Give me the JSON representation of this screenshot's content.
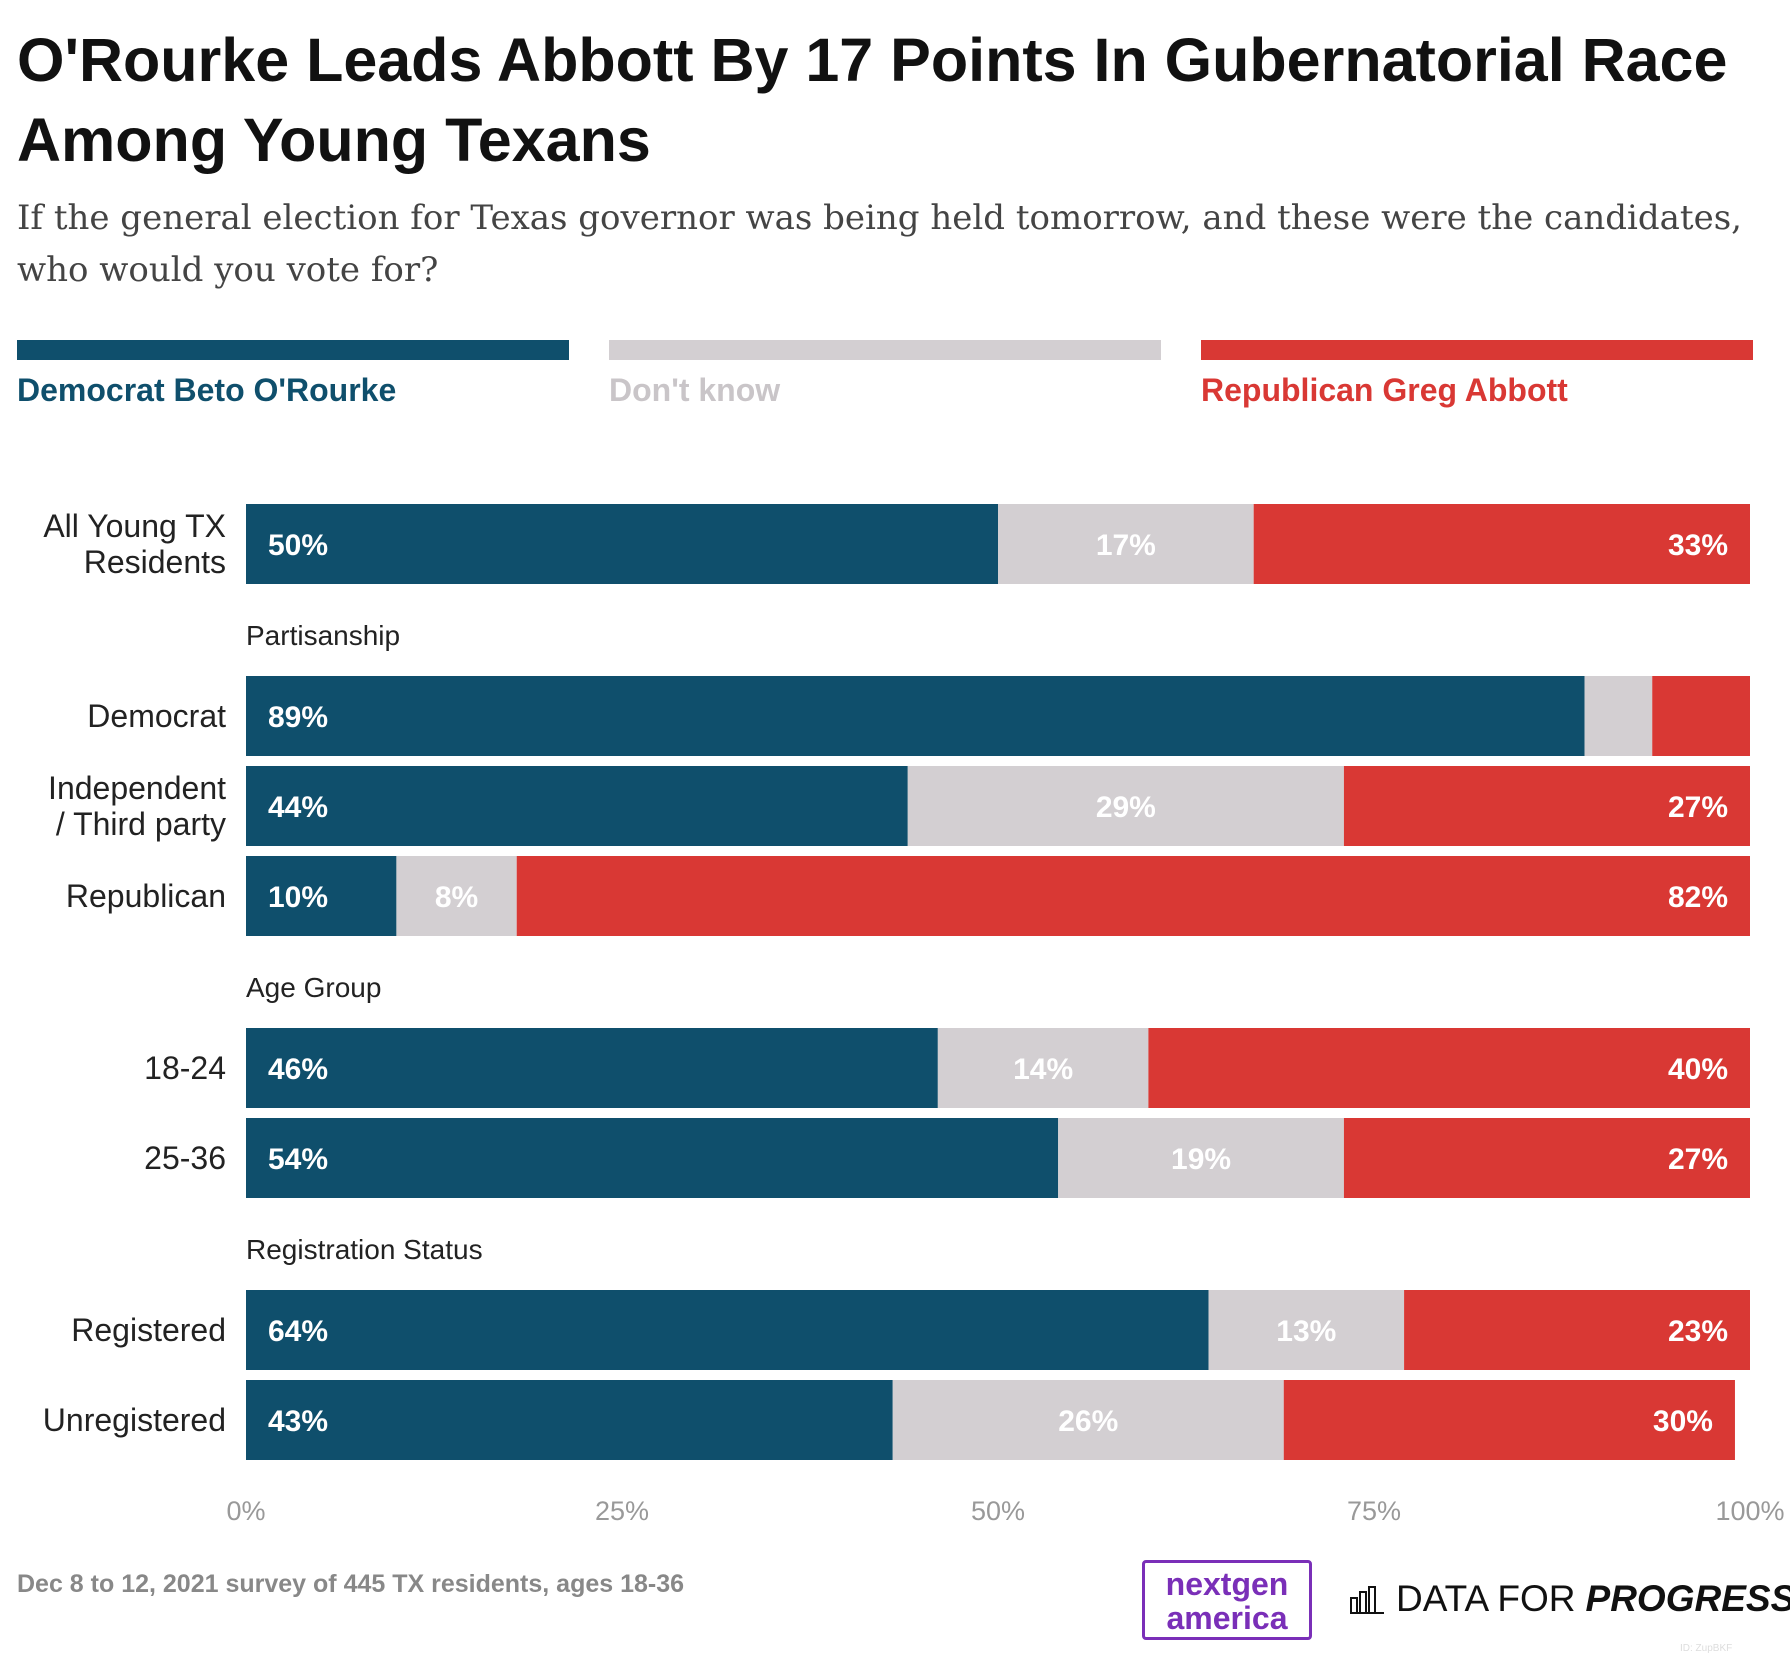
{
  "title": "O'Rourke Leads Abbott By 17 Points In Gubernatorial Race Among Young Texans",
  "subtitle": "If the general election for Texas governor was being held tomorrow, and these were the candidates, who would you vote for?",
  "legend": [
    {
      "label": "Democrat Beto O'Rourke",
      "color": "#0f4f6c"
    },
    {
      "label": "Don't know",
      "color": "#d3cfd2"
    },
    {
      "label": "Republican Greg Abbott",
      "color": "#d93834"
    }
  ],
  "footnote": "Dec 8 to 12, 2021 survey of 445 TX residents, ages 18-36",
  "logos": {
    "nextgen_line1": "nextgen",
    "nextgen_line2": "america",
    "dfp_regular": "DATA FOR",
    "dfp_bold": "PROGRESS"
  },
  "credit": "ID: ZupBKF",
  "chart_data": {
    "type": "bar",
    "orientation": "horizontal",
    "stacked": true,
    "xlim": [
      0,
      100
    ],
    "x_ticks": [
      "0%",
      "25%",
      "50%",
      "75%",
      "100%"
    ],
    "series_names": [
      "Democrat Beto O'Rourke",
      "Don't know",
      "Republican Greg Abbott"
    ],
    "series_colors": [
      "#0f4f6c",
      "#d3cfd2",
      "#d93834"
    ],
    "rows": [
      {
        "label": "All Young TX Residents",
        "group": "",
        "values": [
          50,
          17,
          33
        ],
        "labels": [
          "50%",
          "17%",
          "33%"
        ]
      },
      {
        "label": "Democrat",
        "group": "Partisanship",
        "values": [
          89,
          4.5,
          6.5
        ],
        "labels": [
          "89%",
          "",
          ""
        ]
      },
      {
        "label": "Independent / Third party",
        "group": "Partisanship",
        "values": [
          44,
          29,
          27
        ],
        "labels": [
          "44%",
          "29%",
          "27%"
        ]
      },
      {
        "label": "Republican",
        "group": "Partisanship",
        "values": [
          10,
          8,
          82
        ],
        "labels": [
          "10%",
          "8%",
          "82%"
        ]
      },
      {
        "label": "18-24",
        "group": "Age Group",
        "values": [
          46,
          14,
          40
        ],
        "labels": [
          "46%",
          "14%",
          "40%"
        ]
      },
      {
        "label": "25-36",
        "group": "Age Group",
        "values": [
          54,
          19,
          27
        ],
        "labels": [
          "54%",
          "19%",
          "27%"
        ]
      },
      {
        "label": "Registered",
        "group": "Registration Status",
        "values": [
          64,
          13,
          23
        ],
        "labels": [
          "64%",
          "13%",
          "23%"
        ]
      },
      {
        "label": "Unregistered",
        "group": "Registration Status",
        "values": [
          43,
          26,
          30
        ],
        "labels": [
          "43%",
          "26%",
          "30%"
        ]
      }
    ]
  }
}
